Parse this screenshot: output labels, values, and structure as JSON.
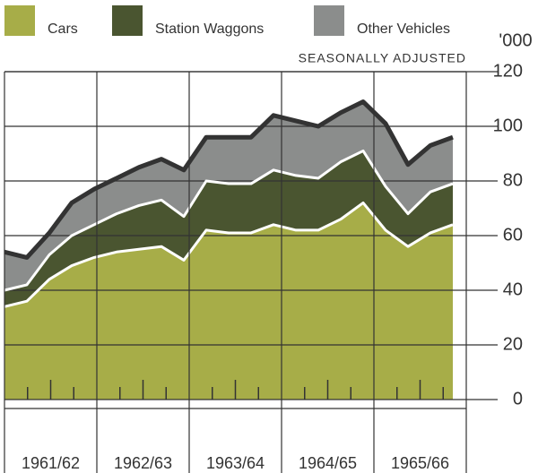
{
  "chart_data": {
    "type": "stacked_area",
    "legend_note": "SEASONALLY ADJUSTED",
    "y_unit_label": "'000",
    "periods": [
      "1961/62",
      "1962/63",
      "1963/64",
      "1964/65",
      "1965/66"
    ],
    "series": [
      {
        "name": "Cars",
        "color": "#a7ad48",
        "values": [
          34,
          36,
          44,
          49,
          52,
          54,
          55,
          56,
          51,
          62,
          61,
          61,
          64,
          62,
          62,
          66,
          72,
          62,
          56,
          61,
          64
        ]
      },
      {
        "name": "Station Waggons",
        "color": "#4a5530",
        "values": [
          6,
          6,
          9,
          11,
          12,
          14,
          16,
          17,
          16,
          18,
          18,
          18,
          20,
          20,
          19,
          21,
          19,
          16,
          12,
          15,
          15
        ]
      },
      {
        "name": "Other Vehicles",
        "color": "#8b8d8c",
        "values": [
          14,
          10,
          8,
          12,
          13,
          13,
          14,
          15,
          17,
          16,
          17,
          17,
          20,
          20,
          19,
          18,
          18,
          23,
          18,
          17,
          17
        ]
      }
    ],
    "ylim": [
      0,
      120
    ],
    "yticks": [
      0,
      20,
      40,
      60,
      80,
      100,
      120
    ],
    "grid": true
  }
}
